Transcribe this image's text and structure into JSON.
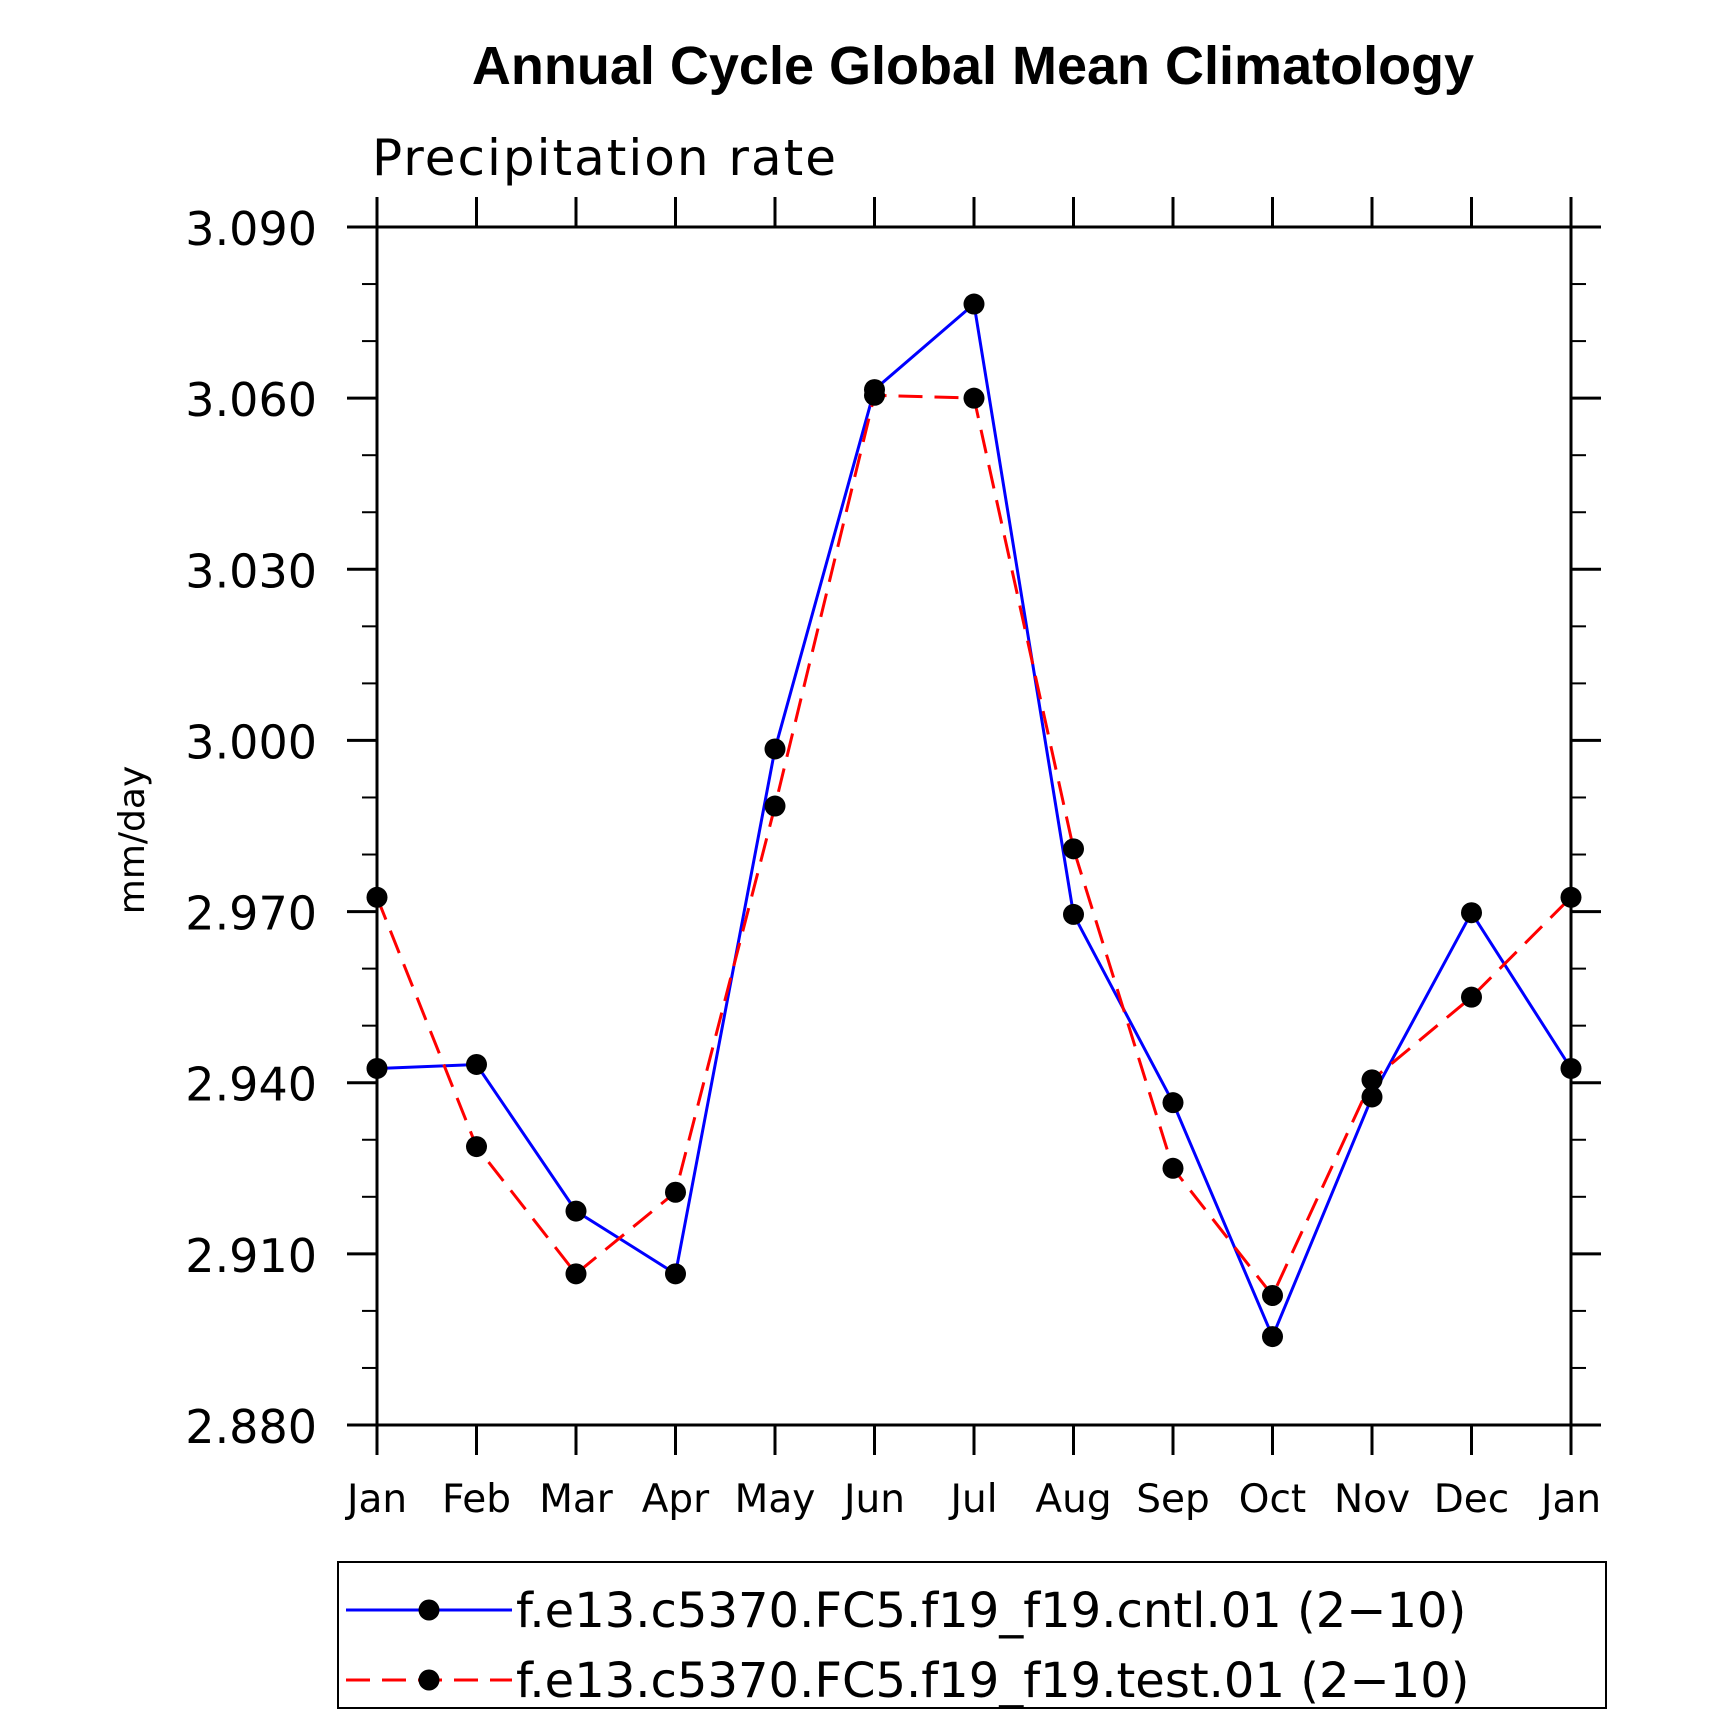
{
  "chart_data": {
    "type": "line",
    "title": "Annual Cycle Global Mean Climatology",
    "subtitle": "Precipitation rate",
    "xlabel": "",
    "ylabel": "mm/day",
    "categories": [
      "Jan",
      "Feb",
      "Mar",
      "Apr",
      "May",
      "Jun",
      "Jul",
      "Aug",
      "Sep",
      "Oct",
      "Nov",
      "Dec",
      "Jan"
    ],
    "ylim": [
      2.88,
      3.09
    ],
    "yticks": [
      "2.880",
      "2.910",
      "2.940",
      "2.970",
      "3.000",
      "3.030",
      "3.060",
      "3.090"
    ],
    "grid": false,
    "legend_position": "bottom",
    "series": [
      {
        "name": "f.e13.c5370.FC5.f19_f19.cntl.01 (2−10)",
        "color": "#0000ff",
        "style": "solid",
        "marker": "filled-circle",
        "values": [
          2.9425,
          2.9432,
          2.9175,
          2.9065,
          2.9985,
          3.0615,
          3.0765,
          2.9695,
          2.9365,
          2.8955,
          2.9375,
          2.9698,
          2.9425
        ]
      },
      {
        "name": "f.e13.c5370.FC5.f19_f19.test.01 (2−10)",
        "color": "#ff0000",
        "style": "dashed",
        "marker": "filled-circle",
        "values": [
          2.9725,
          2.9288,
          2.9065,
          2.9208,
          2.9885,
          3.0605,
          3.06,
          2.981,
          2.925,
          2.9027,
          2.9405,
          2.955,
          2.9725
        ]
      }
    ]
  }
}
